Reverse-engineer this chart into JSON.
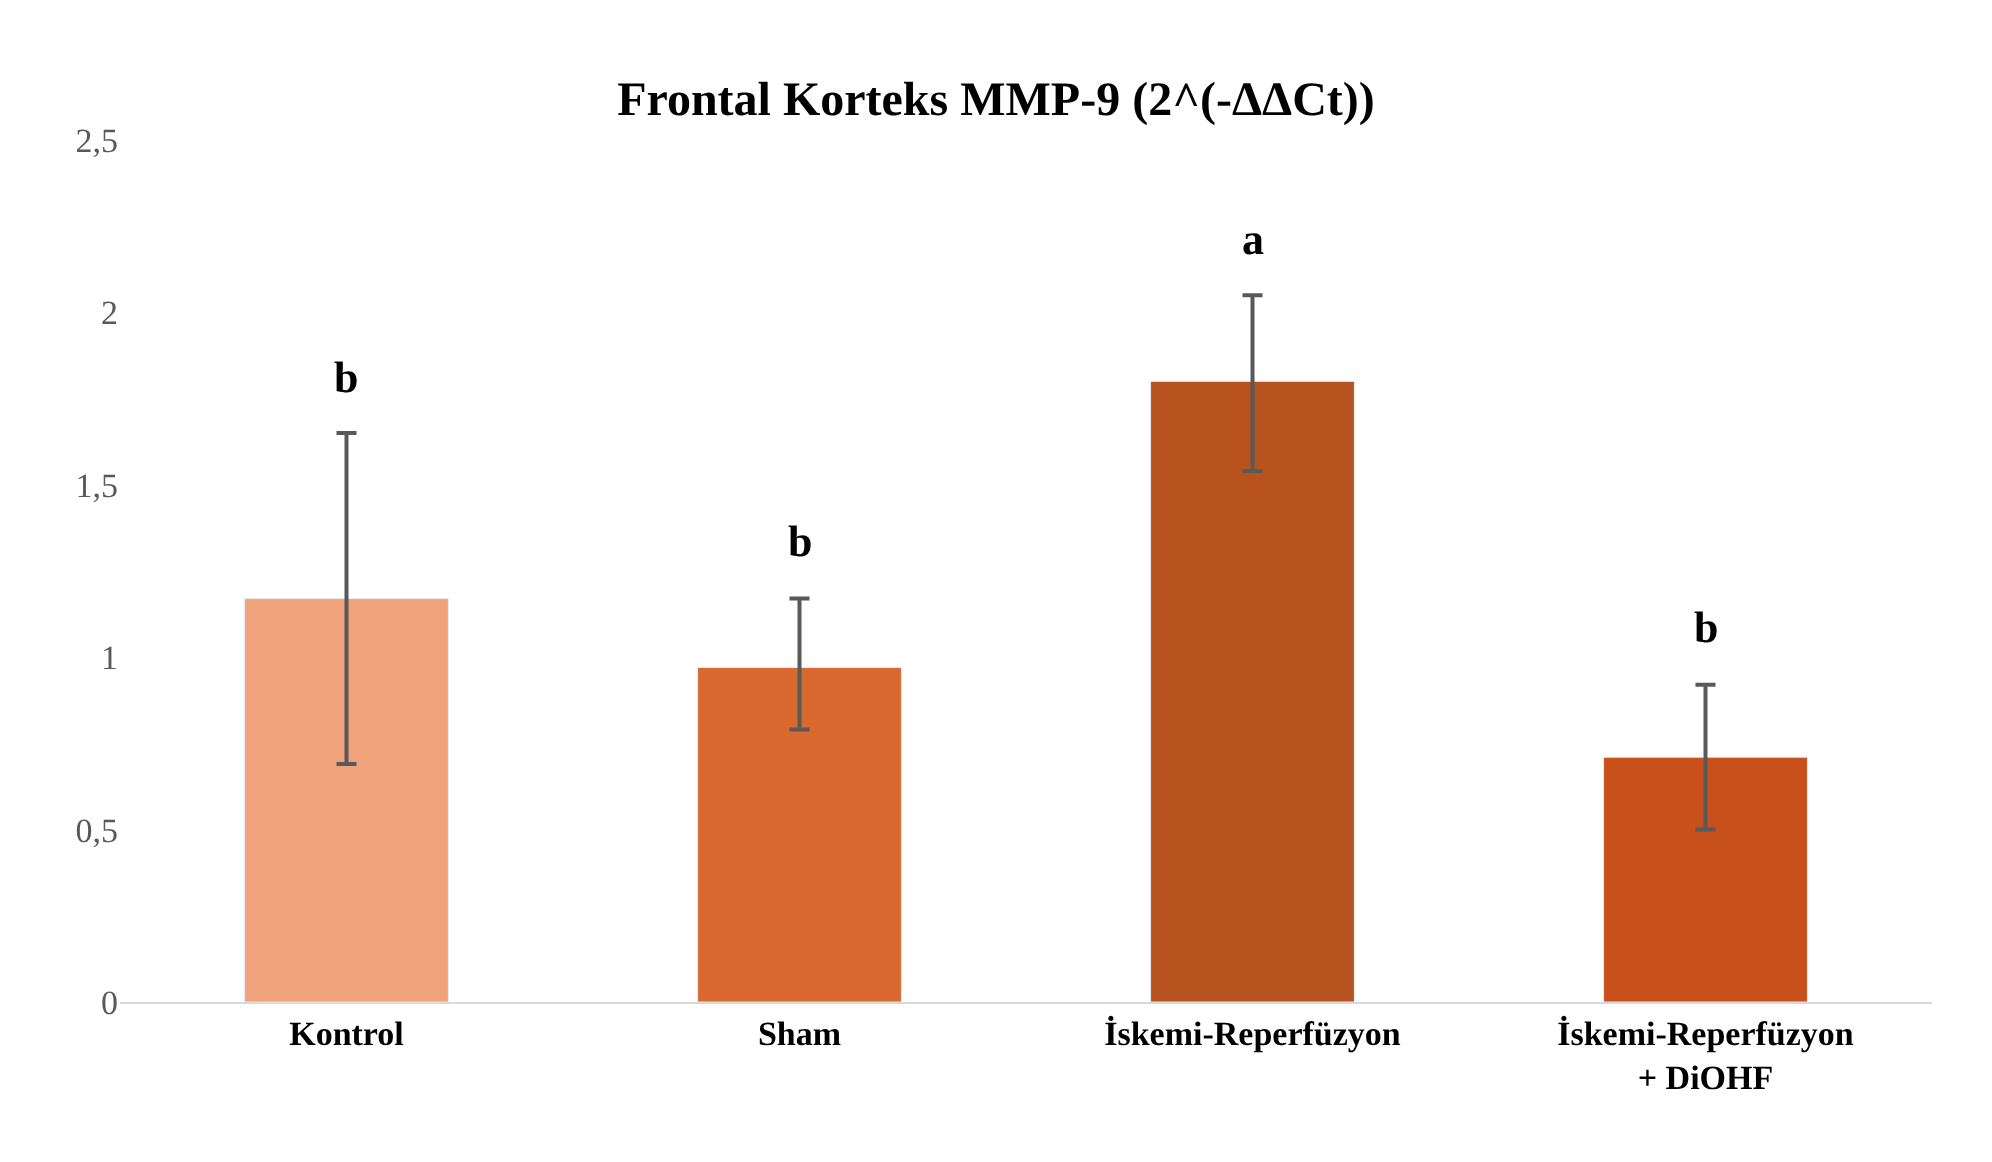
{
  "chart_data": {
    "type": "bar",
    "title": "Frontal Korteks MMP-9 (2^(-ΔΔCt))",
    "categories": [
      "Kontrol",
      "Sham",
      "İskemi-Reperfüzyon",
      "İskemi-Reperfüzyon\n+ DiOHF"
    ],
    "values": [
      1.17,
      0.97,
      1.8,
      0.71
    ],
    "colors": [
      "#f0a27a",
      "#d9692f",
      "#b8521e",
      "#c8501a"
    ],
    "errors": [
      [
        0.69,
        1.65
      ],
      [
        0.79,
        1.17
      ],
      [
        1.54,
        2.05
      ],
      [
        0.5,
        0.92
      ]
    ],
    "ylim": [
      0,
      2.5
    ],
    "yticks": [
      {
        "value": 0,
        "label": "0"
      },
      {
        "value": 0.5,
        "label": "0,5"
      },
      {
        "value": 1,
        "label": "1"
      },
      {
        "value": 1.5,
        "label": "1,5"
      },
      {
        "value": 2,
        "label": "2"
      },
      {
        "value": 2.5,
        "label": "2,5"
      }
    ],
    "annotations": [
      "b",
      "b",
      "a",
      "b"
    ]
  }
}
